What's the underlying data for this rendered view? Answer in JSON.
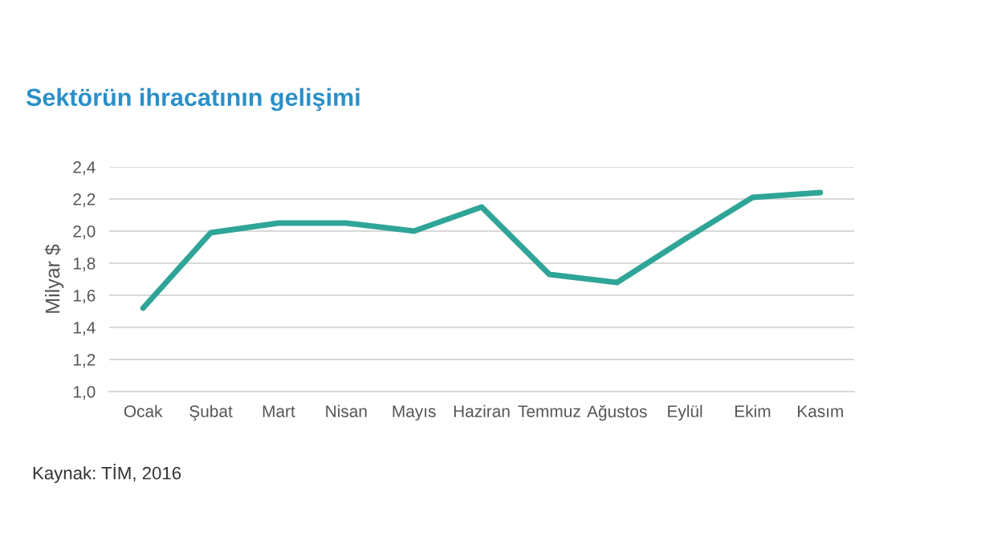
{
  "chart_data": {
    "type": "line",
    "title": "Sektörün ihracatının gelişimi",
    "ylabel": "Milyar $",
    "categories": [
      "Ocak",
      "Şubat",
      "Mart",
      "Nisan",
      "Mayıs",
      "Haziran",
      "Temmuz",
      "Ağustos",
      "Eylül",
      "Ekim",
      "Kasım"
    ],
    "series": [
      {
        "color": "#2fa597",
        "values": [
          1.52,
          1.99,
          2.05,
          2.05,
          2.0,
          2.15,
          1.73,
          1.68,
          1.95,
          2.21,
          2.24
        ]
      }
    ],
    "ylim": [
      1.0,
      2.4
    ],
    "yticks": [
      {
        "value": 1.0,
        "label": "1,0"
      },
      {
        "value": 1.2,
        "label": "1,2"
      },
      {
        "value": 1.4,
        "label": "1,4"
      },
      {
        "value": 1.6,
        "label": "1,6"
      },
      {
        "value": 1.8,
        "label": "1,8"
      },
      {
        "value": 2.0,
        "label": "2,0"
      },
      {
        "value": 2.2,
        "label": "2,2"
      },
      {
        "value": 2.4,
        "label": "2,4"
      }
    ],
    "grid": "y",
    "marker": "none",
    "line_style": "solid",
    "annotations": [
      "Kaynak: TİM, 2016"
    ]
  }
}
